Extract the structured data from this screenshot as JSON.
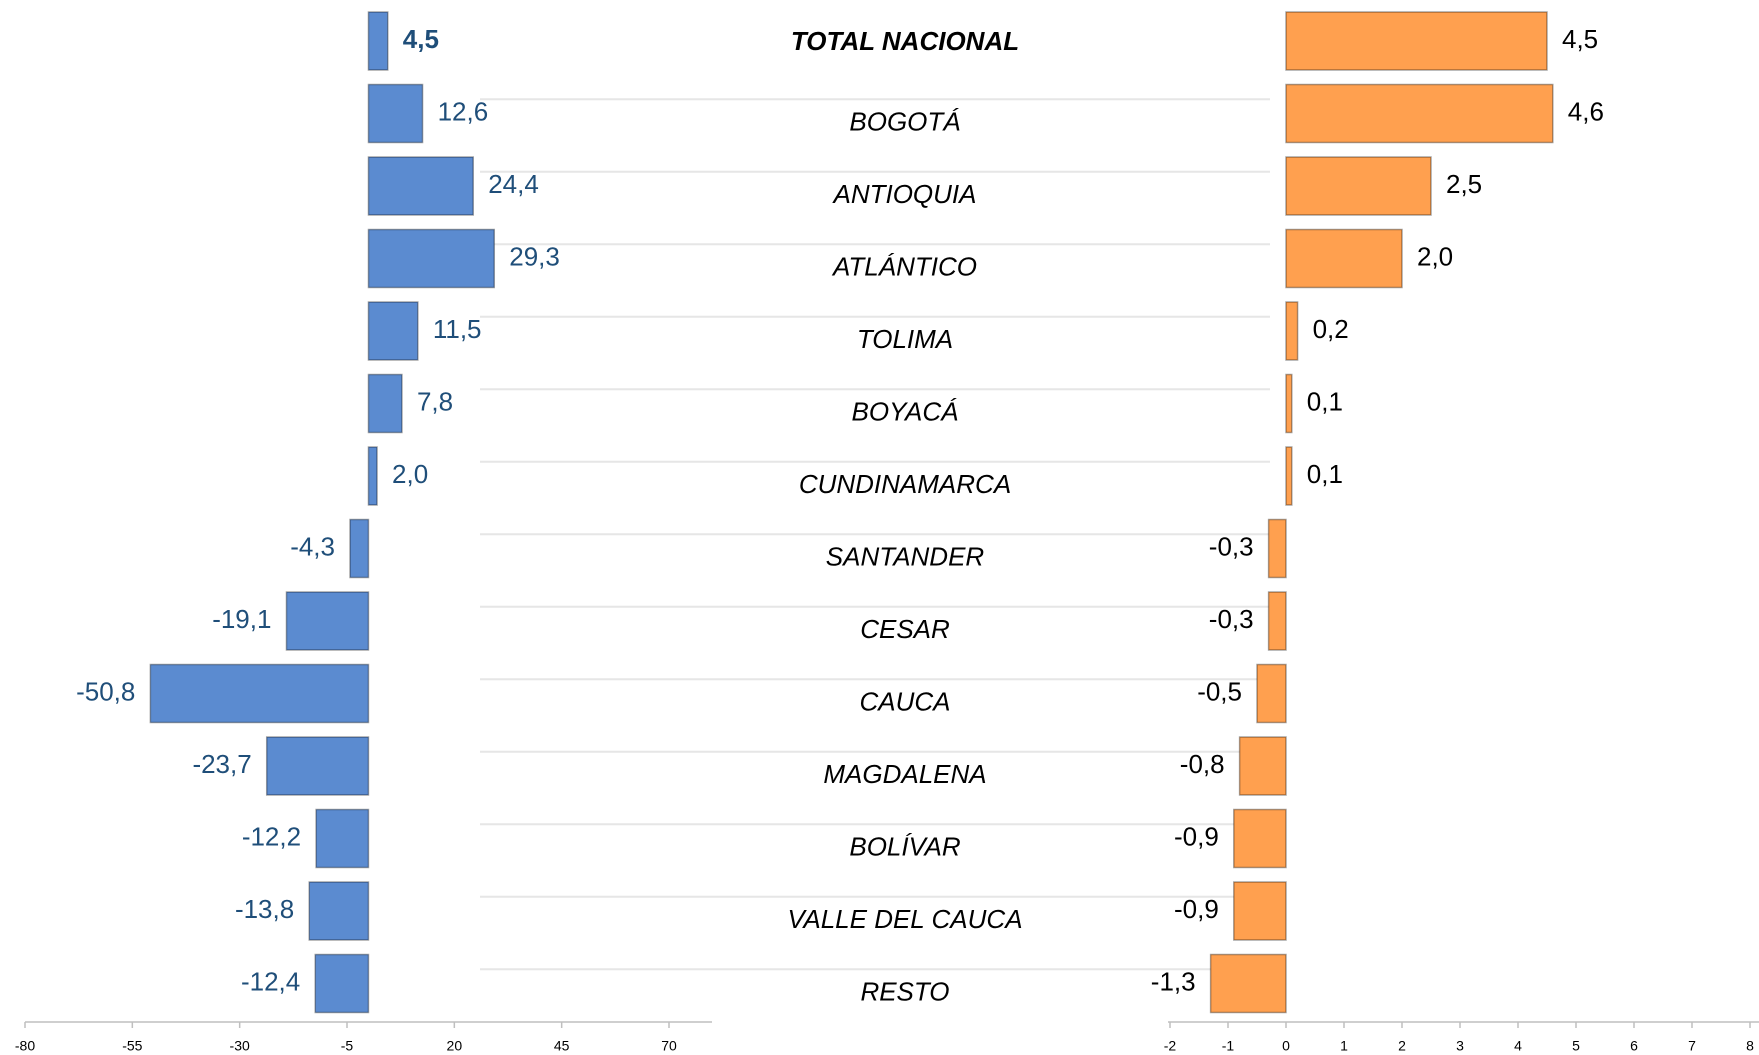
{
  "chart_data": [
    {
      "type": "bar",
      "orientation": "horizontal",
      "categories": [
        "TOTAL NACIONAL",
        "BOGOTÁ",
        "ANTIOQUIA",
        "ATLÁNTICO",
        "TOLIMA",
        "BOYACÁ",
        "CUNDINAMARCA",
        "SANTANDER",
        "CESAR",
        "CAUCA",
        "MAGDALENA",
        "BOLÍVAR",
        "VALLE DEL CAUCA",
        "RESTO"
      ],
      "values": [
        4.5,
        12.6,
        24.4,
        29.3,
        11.5,
        7.8,
        2.0,
        -4.3,
        -19.1,
        -50.8,
        -23.7,
        -12.2,
        -13.8,
        -12.4
      ],
      "value_labels": [
        "4,5",
        "12,6",
        "24,4",
        "29,3",
        "11,5",
        "7,8",
        "2,0",
        "-4,3",
        "-19,1",
        "-50,8",
        "-23,7",
        "-12,2",
        "-13,8",
        "-12,4"
      ],
      "color": "#5b8bd0",
      "label_color": "#1f4e79",
      "xlim": [
        -80,
        70
      ],
      "xticks": [
        -80,
        -55,
        -30,
        -5,
        20,
        45,
        70
      ]
    },
    {
      "type": "bar",
      "orientation": "horizontal",
      "values": [
        4.5,
        4.6,
        2.5,
        2.0,
        0.2,
        0.1,
        0.1,
        -0.3,
        -0.3,
        -0.5,
        -0.8,
        -0.9,
        -0.9,
        -1.3
      ],
      "value_labels": [
        "4,5",
        "4,6",
        "2,5",
        "2,0",
        "0,2",
        "0,1",
        "0,1",
        "-0,3",
        "-0,3",
        "-0,5",
        "-0,8",
        "-0,9",
        "-0,9",
        "-1,3"
      ],
      "color": "#ffa04f",
      "label_color": "#000000",
      "xlim": [
        -2,
        8
      ],
      "xticks": [
        -2,
        -1,
        0,
        1,
        2,
        3,
        4,
        5,
        6,
        7,
        8
      ]
    }
  ]
}
